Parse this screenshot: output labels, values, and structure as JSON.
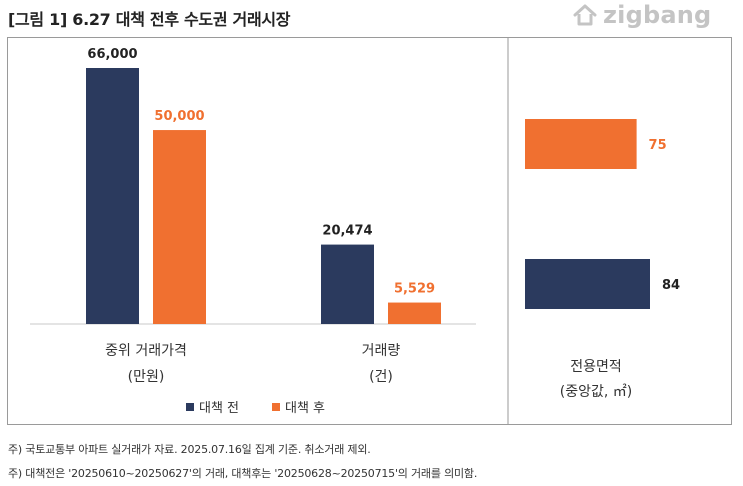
{
  "title": "[그림 1] 6.27 대책 전후 수도권 거래시장",
  "logo": {
    "text": "zigbang",
    "icon": "zigbang-house-icon"
  },
  "colors": {
    "before": "#2b3a5e",
    "after": "#f07030",
    "frame": "#9a9a9a"
  },
  "chart_data": [
    {
      "type": "bar",
      "orientation": "vertical",
      "categories": [
        {
          "label": "중위 거래가격",
          "unit": "(만원)"
        }
      ],
      "series": [
        {
          "name": "대책 전",
          "values": [
            66000
          ],
          "labels": [
            "66,000"
          ]
        },
        {
          "name": "대책 후",
          "values": [
            50000
          ],
          "labels": [
            "50,000"
          ]
        }
      ]
    },
    {
      "type": "bar",
      "orientation": "vertical",
      "categories": [
        {
          "label": "거래량",
          "unit": "(건)"
        }
      ],
      "series": [
        {
          "name": "대책 전",
          "values": [
            20474
          ],
          "labels": [
            "20,474"
          ]
        },
        {
          "name": "대책 후",
          "values": [
            5529
          ],
          "labels": [
            "5,529"
          ]
        }
      ]
    },
    {
      "type": "bar",
      "orientation": "horizontal",
      "categories": [
        {
          "label": "전용면적",
          "unit": "(중앙값, ㎡)"
        }
      ],
      "series": [
        {
          "name": "대책 전",
          "values": [
            84
          ],
          "labels": [
            "84"
          ]
        },
        {
          "name": "대책 후",
          "values": [
            75
          ],
          "labels": [
            "75"
          ]
        }
      ]
    }
  ],
  "legend": [
    {
      "name": "대책 전",
      "color": "#2b3a5e"
    },
    {
      "name": "대책 후",
      "color": "#f07030"
    }
  ],
  "notes": [
    "주) 국토교통부 아파트 실거래가 자료. 2025.07.16일 집계 기준. 취소거래 제외.",
    "주) 대책전은 '20250610~20250627'의 거래, 대책후는 '20250628~20250715'의 거래를 의미함."
  ]
}
